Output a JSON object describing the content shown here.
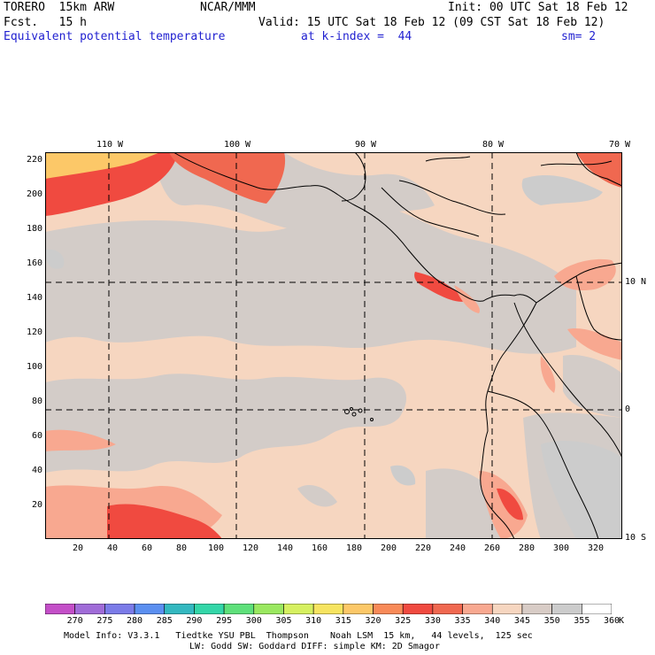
{
  "header": {
    "model": "TORERO  15km ARW",
    "center": "NCAR/MMM",
    "init": "Init: 00 UTC Sat 18 Feb 12",
    "fcst": "Fcst.   15 h",
    "valid": "Valid: 15 UTC Sat 18 Feb 12 (09 CST Sat 18 Feb 12)",
    "field": "Equivalent potential temperature",
    "level": "at k-index =  44",
    "smooth": "sm= 2"
  },
  "map": {
    "lon_labels": [
      "110 W",
      "100 W",
      "90 W",
      "80 W",
      "70 W"
    ],
    "lat_labels": [
      "10 N",
      "0",
      "10 S"
    ],
    "y_ticks": [
      "220",
      "200",
      "180",
      "160",
      "140",
      "120",
      "100",
      "80",
      "60",
      "40",
      "20"
    ],
    "x_ticks": [
      "20",
      "40",
      "60",
      "80",
      "100",
      "120",
      "140",
      "160",
      "180",
      "200",
      "220",
      "240",
      "260",
      "280",
      "300",
      "320"
    ]
  },
  "legend": {
    "levels": [
      "270",
      "275",
      "280",
      "285",
      "290",
      "295",
      "300",
      "305",
      "310",
      "315",
      "320",
      "325",
      "330",
      "335",
      "340",
      "345",
      "350",
      "355",
      "360"
    ],
    "unit": "K",
    "colors": [
      "#c44fc8",
      "#a06cd8",
      "#7b7be8",
      "#5b8ff0",
      "#33b8c0",
      "#33d6a8",
      "#5ee07a",
      "#9ae860",
      "#d6f060",
      "#f6e460",
      "#fcc868",
      "#f88a58",
      "#f04a40",
      "#f06850",
      "#f8a890",
      "#f6d6c0",
      "#d8ccc6",
      "#cccccc",
      "#ffffff"
    ],
    "colors_note": ""
  },
  "footer": {
    "line1": "Model Info: V3.3.1   Tiedtke YSU PBL  Thompson    Noah LSM  15 km,   44 levels,  125 sec",
    "line2": "LW: Godd SW: Goddard DIFF: simple KM: 2D Smagor"
  }
}
